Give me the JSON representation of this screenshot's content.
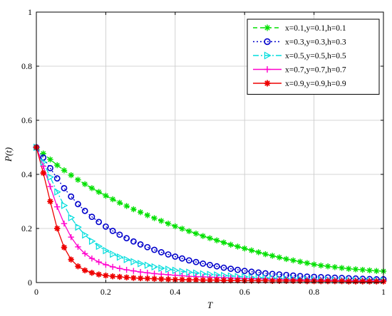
{
  "chart_data": {
    "type": "line",
    "xlabel": "T",
    "ylabel": "P(t)",
    "xlim": [
      0,
      1
    ],
    "ylim": [
      0,
      1
    ],
    "xticks": [
      0,
      0.2,
      0.4,
      0.6,
      0.8,
      1
    ],
    "yticks": [
      0,
      0.2,
      0.4,
      0.6,
      0.8,
      1
    ],
    "xtick_labels": [
      "0",
      "0.2",
      "0.4",
      "0.6",
      "0.8",
      "1"
    ],
    "ytick_labels": [
      "0",
      "0.2",
      "0.4",
      "0.6",
      "0.8",
      "1"
    ],
    "grid": true,
    "legend_position": "top-right",
    "x": [
      0,
      0.02,
      0.04,
      0.06,
      0.08,
      0.1,
      0.12,
      0.14,
      0.16,
      0.18,
      0.2,
      0.22,
      0.24,
      0.26,
      0.28,
      0.3,
      0.32,
      0.34,
      0.36,
      0.38,
      0.4,
      0.42,
      0.44,
      0.46,
      0.48,
      0.5,
      0.52,
      0.54,
      0.56,
      0.58,
      0.6,
      0.62,
      0.64,
      0.66,
      0.68,
      0.7,
      0.72,
      0.74,
      0.76,
      0.78,
      0.8,
      0.82,
      0.84,
      0.86,
      0.88,
      0.9,
      0.92,
      0.94,
      0.96,
      0.98,
      1
    ],
    "series": [
      {
        "name": "x=0.1,y=0.1,h=0.1",
        "color": "#00e000",
        "dash": "6,4",
        "marker": "asterisk",
        "values": [
          0.5,
          0.477,
          0.455,
          0.434,
          0.415,
          0.397,
          0.38,
          0.364,
          0.349,
          0.335,
          0.321,
          0.308,
          0.295,
          0.283,
          0.271,
          0.26,
          0.249,
          0.238,
          0.228,
          0.218,
          0.208,
          0.199,
          0.19,
          0.181,
          0.172,
          0.164,
          0.156,
          0.148,
          0.14,
          0.133,
          0.126,
          0.119,
          0.112,
          0.105,
          0.099,
          0.093,
          0.087,
          0.082,
          0.077,
          0.072,
          0.067,
          0.063,
          0.06,
          0.057,
          0.054,
          0.051,
          0.049,
          0.047,
          0.045,
          0.043,
          0.042
        ]
      },
      {
        "name": "x=0.3,y=0.3,h=0.3",
        "color": "#0000cc",
        "dash": "2,3",
        "marker": "circle",
        "values": [
          0.5,
          0.462,
          0.423,
          0.385,
          0.349,
          0.318,
          0.29,
          0.265,
          0.243,
          0.224,
          0.207,
          0.191,
          0.177,
          0.164,
          0.152,
          0.141,
          0.131,
          0.121,
          0.112,
          0.104,
          0.096,
          0.089,
          0.082,
          0.076,
          0.07,
          0.065,
          0.06,
          0.055,
          0.051,
          0.047,
          0.043,
          0.04,
          0.037,
          0.034,
          0.032,
          0.03,
          0.028,
          0.026,
          0.024,
          0.022,
          0.021,
          0.02,
          0.019,
          0.018,
          0.017,
          0.016,
          0.015,
          0.014,
          0.013,
          0.012,
          0.012
        ]
      },
      {
        "name": "x=0.5,y=0.5,h=0.5",
        "color": "#00dddd",
        "dash": "8,3,2,3",
        "marker": "triangle-right",
        "values": [
          0.5,
          0.445,
          0.39,
          0.335,
          0.285,
          0.24,
          0.205,
          0.176,
          0.153,
          0.134,
          0.118,
          0.105,
          0.094,
          0.085,
          0.077,
          0.07,
          0.064,
          0.058,
          0.053,
          0.049,
          0.045,
          0.041,
          0.038,
          0.035,
          0.032,
          0.03,
          0.028,
          0.026,
          0.024,
          0.022,
          0.021,
          0.019,
          0.018,
          0.017,
          0.016,
          0.015,
          0.014,
          0.013,
          0.012,
          0.011,
          0.011,
          0.01,
          0.01,
          0.009,
          0.009,
          0.008,
          0.008,
          0.008,
          0.007,
          0.007,
          0.007
        ]
      },
      {
        "name": "x=0.7,y=0.7,h=0.7",
        "color": "#ff00cc",
        "dash": "",
        "marker": "plus",
        "values": [
          0.5,
          0.43,
          0.355,
          0.28,
          0.218,
          0.168,
          0.132,
          0.107,
          0.089,
          0.076,
          0.066,
          0.058,
          0.052,
          0.047,
          0.043,
          0.039,
          0.036,
          0.033,
          0.031,
          0.029,
          0.027,
          0.025,
          0.023,
          0.022,
          0.021,
          0.02,
          0.019,
          0.018,
          0.017,
          0.016,
          0.015,
          0.014,
          0.014,
          0.013,
          0.012,
          0.012,
          0.011,
          0.011,
          0.01,
          0.01,
          0.01,
          0.009,
          0.009,
          0.009,
          0.008,
          0.008,
          0.008,
          0.008,
          0.007,
          0.007,
          0.007
        ]
      },
      {
        "name": "x=0.9,y=0.9,h=0.9",
        "color": "#ee0000",
        "dash": "",
        "marker": "star",
        "values": [
          0.5,
          0.405,
          0.3,
          0.2,
          0.13,
          0.085,
          0.06,
          0.045,
          0.036,
          0.03,
          0.026,
          0.023,
          0.021,
          0.019,
          0.017,
          0.016,
          0.015,
          0.014,
          0.013,
          0.012,
          0.011,
          0.011,
          0.01,
          0.01,
          0.009,
          0.009,
          0.009,
          0.008,
          0.008,
          0.008,
          0.007,
          0.007,
          0.007,
          0.007,
          0.006,
          0.006,
          0.006,
          0.006,
          0.006,
          0.005,
          0.005,
          0.005,
          0.005,
          0.005,
          0.005,
          0.004,
          0.004,
          0.004,
          0.004,
          0.004,
          0.004
        ]
      }
    ]
  }
}
